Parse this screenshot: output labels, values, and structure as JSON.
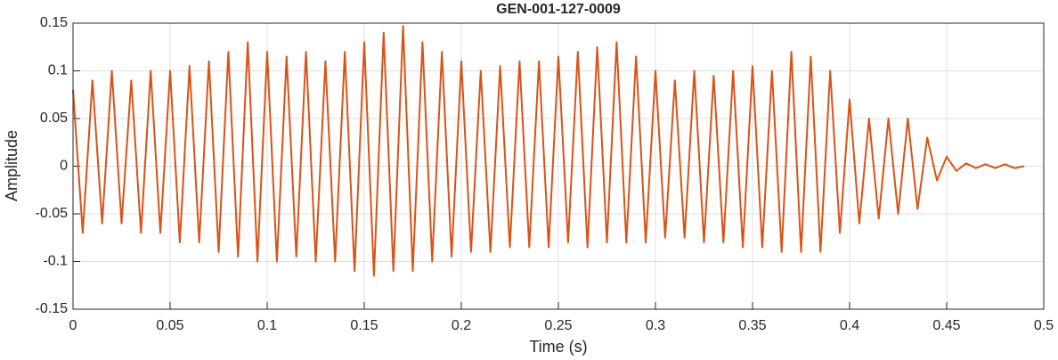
{
  "chart_data": {
    "type": "line",
    "title": "GEN-001-127-0009",
    "xlabel": "Time (s)",
    "ylabel": "Amplitude",
    "x": [
      0,
      0.005,
      0.01,
      0.015,
      0.02,
      0.025,
      0.03,
      0.035,
      0.04,
      0.045,
      0.05,
      0.055,
      0.06,
      0.065,
      0.07,
      0.075,
      0.08,
      0.085,
      0.09,
      0.095,
      0.1,
      0.105,
      0.11,
      0.115,
      0.12,
      0.125,
      0.13,
      0.135,
      0.14,
      0.145,
      0.15,
      0.155,
      0.16,
      0.165,
      0.17,
      0.175,
      0.18,
      0.185,
      0.19,
      0.195,
      0.2,
      0.205,
      0.21,
      0.215,
      0.22,
      0.225,
      0.23,
      0.235,
      0.24,
      0.245,
      0.25,
      0.255,
      0.26,
      0.265,
      0.27,
      0.275,
      0.28,
      0.285,
      0.29,
      0.295,
      0.3,
      0.305,
      0.31,
      0.315,
      0.32,
      0.325,
      0.33,
      0.335,
      0.34,
      0.345,
      0.35,
      0.355,
      0.36,
      0.365,
      0.37,
      0.375,
      0.38,
      0.385,
      0.39,
      0.395,
      0.4,
      0.405,
      0.41,
      0.415,
      0.42,
      0.425,
      0.43,
      0.435,
      0.44,
      0.445,
      0.45,
      0.455,
      0.46,
      0.465,
      0.47,
      0.475,
      0.48,
      0.485,
      0.49
    ],
    "series": [
      {
        "color": "#d95319",
        "values": [
          0.08,
          -0.07,
          0.09,
          -0.06,
          0.1,
          -0.06,
          0.09,
          -0.07,
          0.1,
          -0.07,
          0.1,
          -0.08,
          0.105,
          -0.08,
          0.11,
          -0.09,
          0.12,
          -0.095,
          0.13,
          -0.1,
          0.12,
          -0.1,
          0.115,
          -0.095,
          0.12,
          -0.1,
          0.11,
          -0.1,
          0.12,
          -0.11,
          0.13,
          -0.115,
          0.14,
          -0.11,
          0.147,
          -0.11,
          0.13,
          -0.1,
          0.12,
          -0.095,
          0.11,
          -0.09,
          0.1,
          -0.09,
          0.105,
          -0.085,
          0.11,
          -0.085,
          0.11,
          -0.085,
          0.115,
          -0.08,
          0.12,
          -0.085,
          0.125,
          -0.08,
          0.13,
          -0.08,
          0.115,
          -0.08,
          0.1,
          -0.075,
          0.09,
          -0.075,
          0.1,
          -0.08,
          0.095,
          -0.08,
          0.1,
          -0.085,
          0.105,
          -0.085,
          0.1,
          -0.09,
          0.12,
          -0.09,
          0.115,
          -0.09,
          0.1,
          -0.07,
          0.07,
          -0.06,
          0.05,
          -0.055,
          0.05,
          -0.05,
          0.05,
          -0.045,
          0.03,
          -0.015,
          0.01,
          -0.005,
          0.003,
          -0.002,
          0.002,
          -0.002,
          0.002,
          -0.002,
          0
        ]
      }
    ],
    "xlim": [
      0,
      0.5
    ],
    "xticks": [
      0,
      0.05,
      0.1,
      0.15,
      0.2,
      0.25,
      0.3,
      0.35,
      0.4,
      0.45,
      0.5
    ],
    "ylim": [
      -0.15,
      0.15
    ],
    "yticks": [
      -0.15,
      -0.1,
      -0.05,
      0,
      0.05,
      0.1,
      0.15
    ],
    "grid": true
  }
}
